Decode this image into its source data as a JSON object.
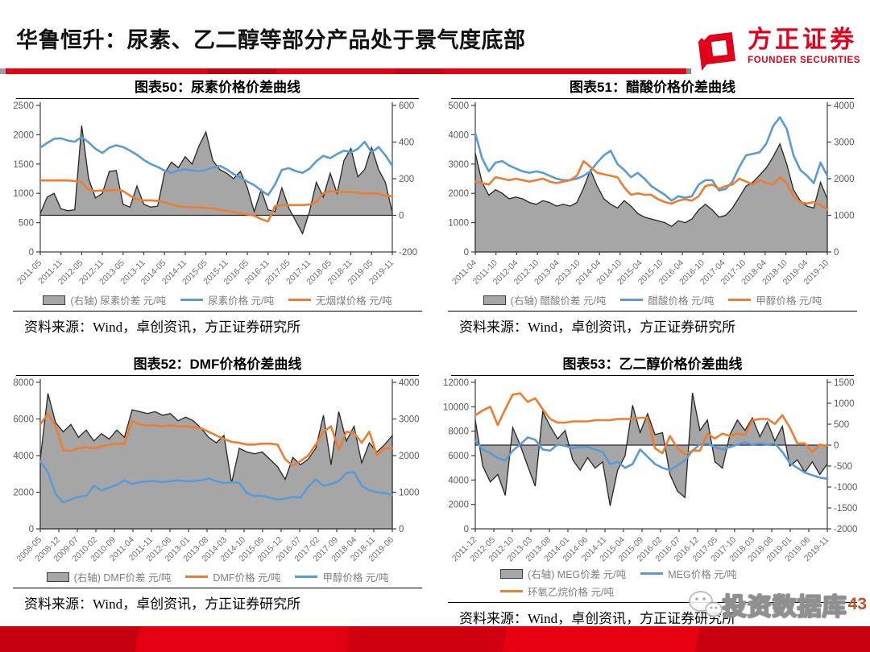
{
  "header": {
    "title": "华鲁恒升：尿素、乙二醇等部分产品处于景气度底部",
    "logo_cn": "方正证券",
    "logo_en": "FOUNDER SECURITIES",
    "brand_color": "#e3001b"
  },
  "footer": {
    "watermark": "投资数据库",
    "page_number": "43"
  },
  "colors": {
    "area_fill": "#A6A6A6",
    "area_outline": "#262626",
    "blue_line": "#5B9BD5",
    "orange_line": "#ED7D31",
    "axis": "#404040",
    "tick_text": "#595959",
    "xlabel_text": "#6e6e6e"
  },
  "chart_data": [
    {
      "type": "line",
      "title": "图表50：尿素价格价差曲线",
      "source": "资料来源：Wind，卓创资讯，方正证券研究所",
      "x_tick_labels": [
        "2011-05",
        "2011-11",
        "2012-05",
        "2012-11",
        "2013-05",
        "2013-11",
        "2014-05",
        "2014-11",
        "2015-05",
        "2015-11",
        "2016-05",
        "2016-11",
        "2017-05",
        "2017-11",
        "2018-05",
        "2018-11",
        "2019-05",
        "2019-11"
      ],
      "left_axis": {
        "min": 0,
        "max": 2500,
        "ticks": [
          2500,
          2000,
          1500,
          1000,
          500,
          0
        ]
      },
      "right_axis": {
        "min": -200,
        "max": 600,
        "ticks": [
          600,
          400,
          200,
          0,
          -200
        ]
      },
      "series": [
        {
          "name": "(右轴) 尿素价差 元/吨",
          "kind": "area",
          "axis": "right",
          "color": "#A6A6A6",
          "values": [
            10,
            100,
            120,
            35,
            25,
            30,
            490,
            200,
            95,
            120,
            240,
            245,
            60,
            45,
            160,
            60,
            45,
            50,
            230,
            290,
            260,
            320,
            280,
            380,
            455,
            300,
            250,
            230,
            200,
            240,
            150,
            20,
            140,
            30,
            20,
            150,
            40,
            -30,
            -100,
            20,
            180,
            100,
            230,
            120,
            300,
            365,
            210,
            250,
            370,
            250,
            180,
            15
          ]
        },
        {
          "name": "尿素价格 元/吨",
          "kind": "line",
          "axis": "left",
          "color": "#5B9BD5",
          "values": [
            1780,
            1860,
            1930,
            1940,
            1900,
            1880,
            1960,
            1870,
            1760,
            1690,
            1780,
            1820,
            1790,
            1730,
            1660,
            1570,
            1500,
            1450,
            1390,
            1350,
            1390,
            1410,
            1390,
            1380,
            1400,
            1440,
            1470,
            1410,
            1330,
            1270,
            1200,
            1140,
            1050,
            970,
            1150,
            1400,
            1430,
            1380,
            1350,
            1420,
            1550,
            1640,
            1600,
            1670,
            1730,
            1700,
            1760,
            1880,
            1700,
            1790,
            1650,
            1470
          ]
        },
        {
          "name": "无烟煤价格 元/吨",
          "kind": "line",
          "axis": "left",
          "color": "#ED7D31",
          "values": [
            1220,
            1220,
            1220,
            1220,
            1220,
            1210,
            1190,
            1060,
            1040,
            1050,
            1050,
            1060,
            1040,
            960,
            900,
            880,
            880,
            870,
            850,
            810,
            780,
            770,
            760,
            760,
            750,
            740,
            720,
            700,
            680,
            660,
            640,
            620,
            560,
            520,
            780,
            800,
            800,
            800,
            800,
            810,
            850,
            1000,
            1040,
            1030,
            1020,
            1020,
            1010,
            1000,
            1000,
            990,
            960,
            950
          ]
        }
      ]
    },
    {
      "type": "line",
      "title": "图表51：醋酸价格价差曲线",
      "source": "资料来源：Wind，卓创资讯，方正证券研究所",
      "x_tick_labels": [
        "2011-04",
        "2011-10",
        "2012-04",
        "2012-10",
        "2013-04",
        "2013-10",
        "2014-04",
        "2014-10",
        "2015-04",
        "2015-10",
        "2016-04",
        "2016-10",
        "2017-04",
        "2017-10",
        "2018-04",
        "2018-10",
        "2019-04",
        "2019-10"
      ],
      "left_axis": {
        "min": 0,
        "max": 5000,
        "ticks": [
          5000,
          4000,
          3000,
          2000,
          1000,
          0
        ]
      },
      "right_axis": {
        "min": 0,
        "max": 4000,
        "ticks": [
          4000,
          3000,
          2000,
          1000,
          0
        ]
      },
      "series": [
        {
          "name": "(右轴) 醋酸价差 元/吨",
          "kind": "area",
          "axis": "right",
          "color": "#A6A6A6",
          "values": [
            2700,
            1900,
            1550,
            1700,
            1600,
            1450,
            1500,
            1450,
            1350,
            1300,
            1400,
            1350,
            1250,
            1300,
            1250,
            1350,
            1750,
            2240,
            1800,
            1450,
            1300,
            1200,
            1400,
            1250,
            1050,
            950,
            900,
            850,
            800,
            700,
            850,
            800,
            900,
            1150,
            1300,
            1150,
            950,
            1000,
            1200,
            1500,
            1800,
            1900,
            2100,
            2300,
            2600,
            2950,
            2400,
            1700,
            1400,
            1250,
            1200,
            1900,
            1450
          ]
        },
        {
          "name": "醋酸价格 元/吨",
          "kind": "line",
          "axis": "left",
          "color": "#5B9BD5",
          "values": [
            4050,
            3200,
            2750,
            3050,
            3100,
            2950,
            2850,
            2750,
            2700,
            2750,
            2700,
            2600,
            2500,
            2450,
            2450,
            2500,
            2600,
            2750,
            3050,
            3300,
            3450,
            3000,
            2800,
            2550,
            2700,
            2500,
            2250,
            2100,
            1950,
            1750,
            1900,
            1850,
            1900,
            2300,
            2450,
            2450,
            2100,
            2150,
            2400,
            2900,
            3300,
            3350,
            3400,
            3700,
            4300,
            4600,
            4200,
            3300,
            2800,
            2600,
            2350,
            3050,
            2600
          ]
        },
        {
          "name": "甲醇价格 元/吨",
          "kind": "line",
          "axis": "left",
          "color": "#ED7D31",
          "values": [
            2400,
            2350,
            2300,
            2550,
            2500,
            2450,
            2500,
            2450,
            2400,
            2450,
            2500,
            2400,
            2350,
            2400,
            2450,
            2600,
            3100,
            2900,
            2700,
            2650,
            2600,
            2550,
            2200,
            1950,
            2000,
            1950,
            1950,
            1800,
            1700,
            1650,
            1750,
            1800,
            1750,
            1900,
            2250,
            2300,
            2150,
            2250,
            2300,
            2500,
            2400,
            2300,
            2450,
            2350,
            2300,
            2550,
            2350,
            1900,
            1700,
            1650,
            1700,
            1600,
            1450
          ]
        }
      ]
    },
    {
      "type": "line",
      "title": "图表52：DMF价格价差曲线",
      "source": "资料来源：Wind，卓创资讯，方正证券研究所",
      "x_tick_labels": [
        "2008-05",
        "2008-12",
        "2009-07",
        "2010-02",
        "2010-09",
        "2011-04",
        "2011-11",
        "2012-06",
        "2013-01",
        "2013-08",
        "2014-03",
        "2014-10",
        "2015-05",
        "2015-12",
        "2016-07",
        "2017-02",
        "2017-09",
        "2018-04",
        "2018-11",
        "2019-06"
      ],
      "left_axis": {
        "min": 0,
        "max": 8000,
        "ticks": [
          8000,
          6000,
          4000,
          2000,
          0
        ]
      },
      "right_axis": {
        "min": 0,
        "max": 4000,
        "ticks": [
          4000,
          3000,
          2000,
          1000,
          0
        ]
      },
      "series": [
        {
          "name": "(右轴) DMF价差 元/吨",
          "kind": "area",
          "axis": "right",
          "color": "#A6A6A6",
          "values": [
            1900,
            3700,
            2900,
            2650,
            2850,
            2500,
            2700,
            2400,
            2600,
            2450,
            2700,
            2500,
            3250,
            3200,
            3150,
            3200,
            3100,
            3150,
            2950,
            3050,
            2950,
            2750,
            2500,
            2350,
            2550,
            1250,
            2200,
            2100,
            2050,
            2100,
            1900,
            1700,
            1350,
            1950,
            1750,
            1900,
            2200,
            3100,
            1750,
            3200,
            2400,
            2800,
            1800,
            2350,
            2100,
            2300,
            2550
          ]
        },
        {
          "name": "DMF价格 元/吨",
          "kind": "line",
          "axis": "left",
          "color": "#ED7D31",
          "values": [
            5700,
            6300,
            5600,
            4300,
            4250,
            4400,
            4450,
            4400,
            4500,
            4600,
            4650,
            4650,
            5900,
            5700,
            5650,
            5650,
            5600,
            5650,
            5600,
            5600,
            5550,
            5500,
            5300,
            5100,
            4900,
            4750,
            4700,
            4600,
            4600,
            4650,
            4650,
            4600,
            3800,
            3450,
            3700,
            4000,
            4600,
            5300,
            5600,
            4300,
            5300,
            5250,
            4700,
            5300,
            4000,
            4400,
            4400
          ]
        },
        {
          "name": "甲醇价格 元/吨",
          "kind": "line",
          "axis": "left",
          "color": "#5B9BD5",
          "values": [
            3700,
            3100,
            1900,
            1450,
            1600,
            1750,
            1800,
            2350,
            2100,
            2250,
            2400,
            2650,
            2450,
            2550,
            2600,
            2600,
            2550,
            2600,
            2650,
            2600,
            2600,
            2650,
            2750,
            2600,
            2500,
            2550,
            2500,
            1950,
            1800,
            1800,
            1700,
            1600,
            1650,
            1750,
            1700,
            2300,
            2700,
            2350,
            2450,
            2600,
            3050,
            3100,
            2350,
            2100,
            2000,
            1950,
            1850
          ]
        }
      ]
    },
    {
      "type": "line",
      "title": "图表53：乙二醇价格价差曲线",
      "source": "资料来源：Wind，卓创资讯，方正证券研究所",
      "x_tick_labels": [
        "2011-12",
        "2012-05",
        "2012-10",
        "2013-03",
        "2013-08",
        "2014-01",
        "2014-06",
        "2014-11",
        "2015-04",
        "2015-09",
        "2016-02",
        "2016-07",
        "2016-12",
        "2017-05",
        "2017-10",
        "2018-03",
        "2018-08",
        "2019-01",
        "2019-06",
        "2019-11"
      ],
      "left_axis": {
        "min": 0,
        "max": 12000,
        "ticks": [
          12000,
          10000,
          8000,
          6000,
          4000,
          2000,
          0
        ]
      },
      "right_axis": {
        "min": -2000,
        "max": 1500,
        "ticks": [
          1500,
          1000,
          500,
          0,
          -500,
          -1000,
          -1500,
          -2000
        ]
      },
      "series": [
        {
          "name": "(右轴) MEG价差 元/吨",
          "kind": "area",
          "axis": "right",
          "color": "#A6A6A6",
          "values": [
            600,
            -500,
            -880,
            -700,
            -1200,
            420,
            0,
            -500,
            -980,
            800,
            450,
            150,
            350,
            -350,
            -600,
            -300,
            -550,
            -400,
            -1450,
            -600,
            -250,
            950,
            300,
            750,
            250,
            300,
            -700,
            -1100,
            -1250,
            1250,
            350,
            600,
            -400,
            -550,
            250,
            600,
            350,
            650,
            200,
            550,
            100,
            450,
            -500,
            -350,
            -650,
            -400,
            -700,
            -450
          ]
        },
        {
          "name": "MEG价格 元/吨",
          "kind": "line",
          "axis": "left",
          "color": "#5B9BD5",
          "values": [
            7200,
            6500,
            6200,
            5800,
            5600,
            6400,
            6900,
            7500,
            7300,
            6500,
            6400,
            6900,
            6800,
            6600,
            6700,
            6700,
            6500,
            6300,
            5300,
            5500,
            5000,
            5300,
            6500,
            5900,
            5300,
            5000,
            4800,
            5200,
            5600,
            6400,
            6900,
            7000,
            6700,
            6500,
            6700,
            6900,
            7100,
            6900,
            7000,
            6900,
            7000,
            6300,
            5400,
            5000,
            4600,
            4400,
            4200,
            4100
          ]
        },
        {
          "name": "环氧乙烷价格 元/吨",
          "kind": "line",
          "axis": "left",
          "color": "#ED7D31",
          "values": [
            9300,
            9700,
            10000,
            8500,
            9800,
            11000,
            11100,
            10400,
            10700,
            9800,
            9000,
            8700,
            8700,
            8800,
            8800,
            8800,
            8900,
            8900,
            8900,
            9000,
            9000,
            9000,
            9100,
            9100,
            6600,
            6200,
            7600,
            6600,
            6100,
            6400,
            6400,
            7800,
            7400,
            7800,
            7600,
            7800,
            7700,
            8900,
            9000,
            9000,
            8600,
            9300,
            8300,
            7000,
            7000,
            6300,
            6900,
            6800
          ]
        }
      ]
    }
  ]
}
